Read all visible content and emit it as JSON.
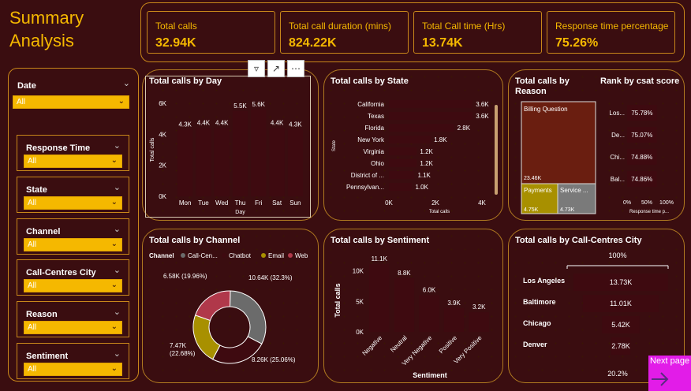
{
  "page_title": "Summary\nAnalysis",
  "kpis": [
    {
      "label": "Total calls",
      "value": "32.94K"
    },
    {
      "label": "Total call duration (mins)",
      "value": "824.22K"
    },
    {
      "label": "Total Call time (Hrs)",
      "value": "13.74K"
    },
    {
      "label": "Response time percentage",
      "value": "75.26%"
    }
  ],
  "slicers": [
    {
      "label": "Date",
      "value": "All"
    },
    {
      "label": "Response Time",
      "value": "All"
    },
    {
      "label": "State",
      "value": "All"
    },
    {
      "label": "Channel",
      "value": "All"
    },
    {
      "label": "Call-Centres City",
      "value": "All"
    },
    {
      "label": "Reason",
      "value": "All"
    },
    {
      "label": "Sentiment",
      "value": "All"
    }
  ],
  "visual_toolbar": {
    "filter_icon": "filter-icon",
    "focus_icon": "focus-mode-icon",
    "more_icon": "more-options-icon"
  },
  "next_page": {
    "label": "Next page",
    "icon": "arrow-right-icon"
  },
  "colors": {
    "accent": "#f5b800",
    "bar": "#3e0a10",
    "bg": "#3a0d10"
  },
  "chart_data": [
    {
      "type": "bar",
      "title": "Total calls by Day",
      "xlabel": "Day",
      "ylabel": "Total calls",
      "categories": [
        "Mon",
        "Tue",
        "Wed",
        "Thu",
        "Fri",
        "Sat",
        "Sun"
      ],
      "values": [
        4300,
        4400,
        4400,
        5500,
        5600,
        4400,
        4300
      ],
      "data_labels": [
        "4.3K",
        "4.4K",
        "4.4K",
        "5.5K",
        "5.6K",
        "4.4K",
        "4.3K"
      ],
      "ylim": [
        0,
        6000
      ],
      "yticks": [
        "0K",
        "2K",
        "4K",
        "6K"
      ]
    },
    {
      "type": "bar",
      "title": "Total calls by State",
      "orientation": "horizontal",
      "xlabel": "Total calls",
      "ylabel": "State",
      "categories": [
        "California",
        "Texas",
        "Florida",
        "New York",
        "Virginia",
        "Ohio",
        "District of ...",
        "Pennsylvan..."
      ],
      "values": [
        3600,
        3600,
        2800,
        1800,
        1200,
        1200,
        1100,
        1000
      ],
      "data_labels": [
        "3.6K",
        "3.6K",
        "2.8K",
        "1.8K",
        "1.2K",
        "1.2K",
        "1.1K",
        "1.0K"
      ],
      "xlim": [
        0,
        4000
      ],
      "xticks": [
        "0K",
        "2K",
        "4K"
      ]
    },
    {
      "type": "treemap",
      "title": "Total calls by Reason",
      "categories": [
        "Billing Question",
        "Payments",
        "Service ..."
      ],
      "values": [
        23460,
        4750,
        4730
      ],
      "data_labels": [
        "23.46K",
        "4.75K",
        "4.73K"
      ]
    },
    {
      "type": "bar",
      "title": "Rank by csat score",
      "orientation": "horizontal",
      "xlabel": "Response time p...",
      "categories": [
        "Los...",
        "De...",
        "Chi...",
        "Bal..."
      ],
      "values": [
        75.78,
        75.07,
        74.88,
        74.86
      ],
      "data_labels": [
        "75.78%",
        "75.07%",
        "74.88%",
        "74.86%"
      ],
      "xlim": [
        0,
        100
      ],
      "xticks": [
        "0%",
        "50%",
        "100%"
      ]
    },
    {
      "type": "pie",
      "title": "Total calls by Channel",
      "legend_title": "Channel",
      "categories": [
        "Call-Cen...",
        "Chatbot",
        "Email",
        "Web"
      ],
      "values": [
        10640,
        8260,
        7470,
        6580
      ],
      "data_labels": [
        "10.64K (32.3%)",
        "8.26K (25.06%)",
        "7.47K\n(22.68%)",
        "6.58K (19.96%)"
      ],
      "colors": [
        "#6b6b6b",
        "#3e0a10",
        "#a89000",
        "#b0384a"
      ]
    },
    {
      "type": "bar",
      "title": "Total calls by Sentiment",
      "xlabel": "Sentiment",
      "ylabel": "Total calls",
      "categories": [
        "Negative",
        "Neutral",
        "Very Negative",
        "Positive",
        "Very Positive"
      ],
      "values": [
        11100,
        8800,
        6000,
        3900,
        3200
      ],
      "data_labels": [
        "11.1K",
        "8.8K",
        "6.0K",
        "3.9K",
        "3.2K"
      ],
      "ylim": [
        0,
        11100
      ],
      "yticks": [
        "0K",
        "5K",
        "10K"
      ]
    },
    {
      "type": "funnel",
      "title": "Total calls by Call-Centres City",
      "categories": [
        "Los Angeles",
        "Baltimore",
        "Chicago",
        "Denver"
      ],
      "values": [
        13730,
        11010,
        5420,
        2780
      ],
      "data_labels": [
        "13.73K",
        "11.01K",
        "5.42K",
        "2.78K"
      ],
      "top_label": "100%",
      "bottom_label": "20.2%"
    }
  ]
}
